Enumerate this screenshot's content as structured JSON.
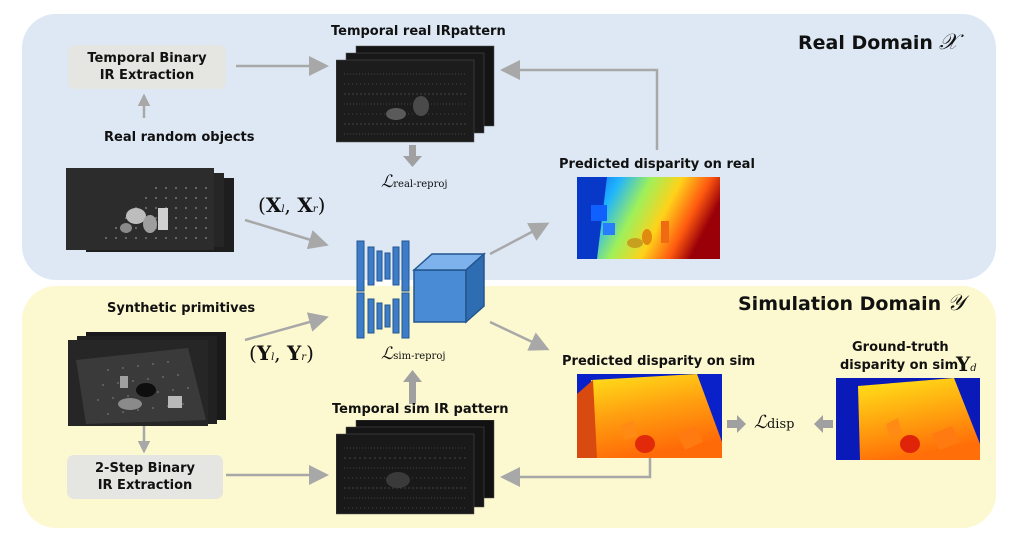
{
  "real_domain": {
    "title": "Real Domain",
    "symbol": "𝒳",
    "captions": {
      "temporal_real_ir": "Temporal real IRpattern",
      "real_objects": "Real random objects",
      "pred_real": "Predicted disparity on real"
    },
    "extraction_box": [
      "Temporal Binary",
      "IR Extraction"
    ],
    "loss_main": "ℒ",
    "loss_sub": "real-reproj",
    "input_pair": {
      "a": "X",
      "a_sub": "l",
      "b": "X",
      "b_sub": "r"
    }
  },
  "sim_domain": {
    "title": "Simulation Domain",
    "symbol": "𝒴",
    "captions": {
      "synthetic": "Synthetic primitives",
      "temporal_sim_ir": "Temporal sim IR pattern",
      "pred_sim": "Predicted disparity on sim",
      "gt_line1": "Ground-truth",
      "gt_line2": "disparity on sim"
    },
    "extraction_box": [
      "2-Step Binary",
      "IR Extraction"
    ],
    "loss_main": "ℒ",
    "loss_sub": "sim-reproj",
    "disp_loss_main": "ℒ",
    "disp_loss_sub": "disp",
    "gt_symbol": "Y",
    "gt_sub": "d",
    "input_pair": {
      "a": "Y",
      "a_sub": "l",
      "b": "Y",
      "b_sub": "r"
    }
  },
  "colors": {
    "real_bg": "#dde8f4",
    "sim_bg": "#fcf8cf",
    "arrow": "#a8a8a8",
    "network": "#3d7cc9",
    "box": "#e5e5e2"
  }
}
